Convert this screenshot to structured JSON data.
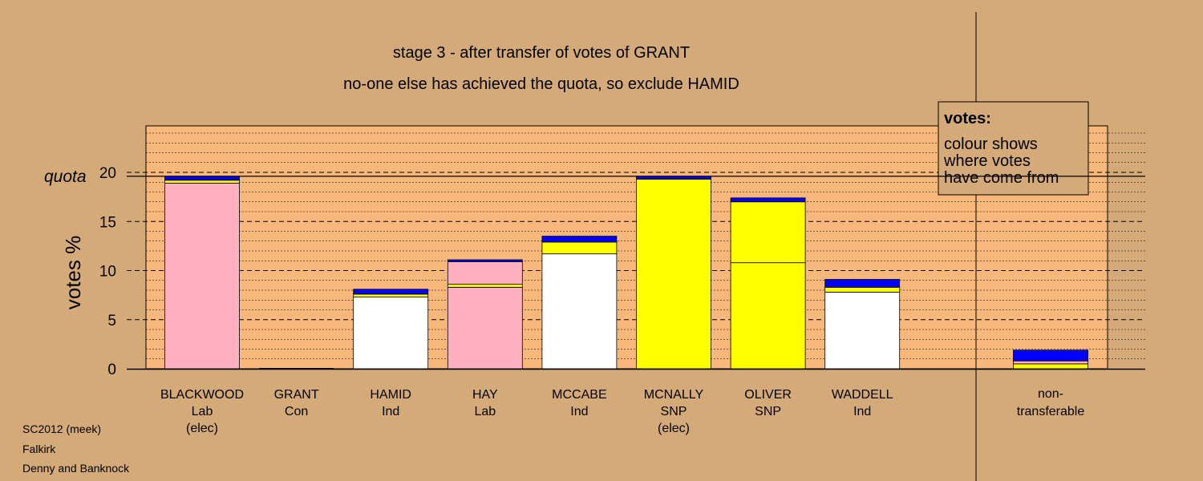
{
  "chart_data": {
    "type": "bar",
    "title": "stage 3 - after transfer of votes of GRANT",
    "subtitle": "no-one else has achieved the quota, so exclude HAMID",
    "ylabel": "votes %",
    "ylim": [
      0,
      24.8
    ],
    "yticks": [
      0,
      5,
      10,
      15,
      20
    ],
    "quota": 19.6,
    "quota_label": "quota",
    "grid": true,
    "legend": {
      "title": "votes:",
      "lines": [
        "colour shows",
        "where votes",
        "have come from"
      ],
      "placement": "top-right"
    },
    "candidates": [
      {
        "name": "BLACKWOOD",
        "party": "Lab",
        "note": "(elec)",
        "segments": [
          {
            "value": 18.9,
            "color": "#ffb0c0"
          },
          {
            "value": 0.3,
            "color": "#ffff00"
          },
          {
            "value": 0.4,
            "color": "#0000ff"
          }
        ]
      },
      {
        "name": "GRANT",
        "party": "Con",
        "note": "",
        "segments": []
      },
      {
        "name": "HAMID",
        "party": "Ind",
        "note": "",
        "segments": [
          {
            "value": 7.3,
            "color": "#ffffff"
          },
          {
            "value": 0.3,
            "color": "#ffff00"
          },
          {
            "value": 0.5,
            "color": "#0000ff"
          }
        ]
      },
      {
        "name": "HAY",
        "party": "Lab",
        "note": "",
        "segments": [
          {
            "value": 8.3,
            "color": "#ffb0c0"
          },
          {
            "value": 0.3,
            "color": "#ffff00"
          },
          {
            "value": 2.3,
            "color": "#ffb0c0"
          },
          {
            "value": 0.2,
            "color": "#0000ff"
          }
        ]
      },
      {
        "name": "MCCABE",
        "party": "Ind",
        "note": "",
        "segments": [
          {
            "value": 11.7,
            "color": "#ffffff"
          },
          {
            "value": 1.2,
            "color": "#ffff00"
          },
          {
            "value": 0.6,
            "color": "#0000ff"
          }
        ]
      },
      {
        "name": "MCNALLY",
        "party": "SNP",
        "note": "(elec)",
        "segments": [
          {
            "value": 19.3,
            "color": "#ffff00"
          },
          {
            "value": 0.3,
            "color": "#0000ff"
          }
        ]
      },
      {
        "name": "OLIVER",
        "party": "SNP",
        "note": "",
        "segments": [
          {
            "value": 10.8,
            "color": "#ffff00"
          },
          {
            "value": 6.2,
            "color": "#ffff00"
          },
          {
            "value": 0.4,
            "color": "#0000ff"
          }
        ]
      },
      {
        "name": "WADDELL",
        "party": "Ind",
        "note": "",
        "segments": [
          {
            "value": 7.8,
            "color": "#ffffff"
          },
          {
            "value": 0.5,
            "color": "#ffff00"
          },
          {
            "value": 0.8,
            "color": "#0000ff"
          }
        ]
      }
    ],
    "nontransferable": {
      "label_lines": [
        "non-",
        "transferable"
      ],
      "segments": [
        {
          "value": 0.5,
          "color": "#ffff00"
        },
        {
          "value": 0.3,
          "color": "#ffb0c0"
        },
        {
          "value": 1.1,
          "color": "#0000ff"
        }
      ]
    }
  },
  "footer": [
    "SC2012 (meek)",
    "Falkirk",
    "Denny and Banknock"
  ]
}
